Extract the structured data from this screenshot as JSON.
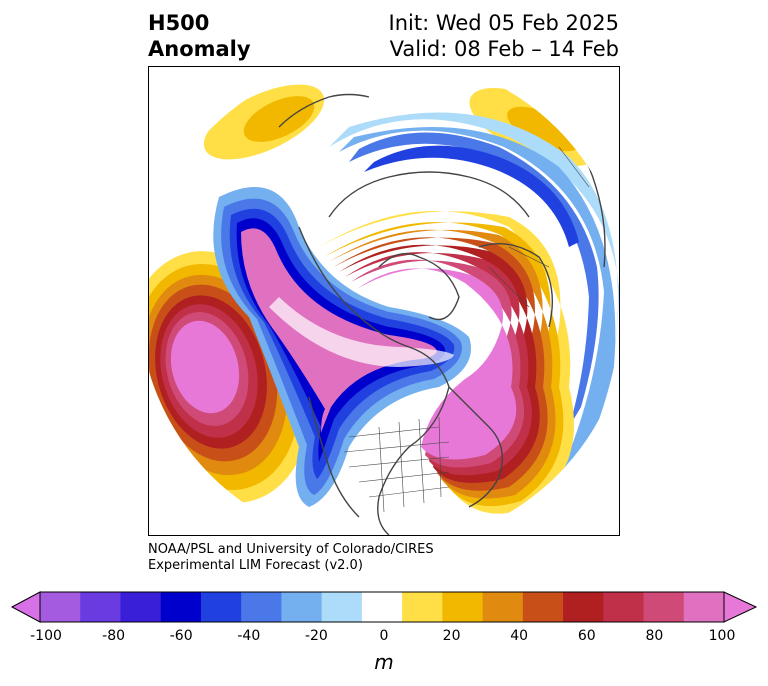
{
  "title": {
    "left_line1": "H500",
    "left_line2": "Anomaly",
    "right_line1": "Init: Wed 05 Feb 2025",
    "right_line2": "Valid: 08 Feb – 14 Feb"
  },
  "credit": {
    "line1": "NOAA/PSL and University of Colorado/CIRES",
    "line2": "Experimental LIM Forecast (v2.0)"
  },
  "colorbar": {
    "units": "m",
    "tick_labels": [
      "-100",
      "-80",
      "-60",
      "-40",
      "-20",
      "0",
      "20",
      "40",
      "60",
      "80",
      "100"
    ],
    "colors": [
      "#a55be0",
      "#6a3be0",
      "#3a1fd8",
      "#0000cc",
      "#2040e0",
      "#4a78e8",
      "#74b0f0",
      "#acdcfa",
      "#ffffff",
      "#ffdf45",
      "#f2b800",
      "#e08a10",
      "#c85018",
      "#b02020",
      "#c03048",
      "#d04a78",
      "#e070c0"
    ],
    "low_extend_color": "#d870e8",
    "high_extend_color": "#e878d8"
  },
  "map": {
    "projection": "polar stereographic (North Pole)",
    "features": [
      "contour fill anomalies",
      "coastlines",
      "country borders",
      "US state borders"
    ]
  }
}
